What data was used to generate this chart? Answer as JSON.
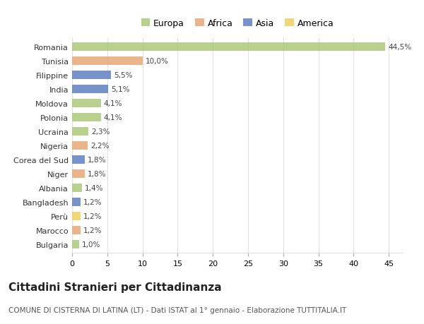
{
  "countries": [
    "Romania",
    "Tunisia",
    "Filippine",
    "India",
    "Moldova",
    "Polonia",
    "Ucraina",
    "Nigeria",
    "Corea del Sud",
    "Niger",
    "Albania",
    "Bangladesh",
    "Perù",
    "Marocco",
    "Bulgaria"
  ],
  "values": [
    44.5,
    10.0,
    5.5,
    5.1,
    4.1,
    4.1,
    2.3,
    2.2,
    1.8,
    1.8,
    1.4,
    1.2,
    1.2,
    1.2,
    1.0
  ],
  "labels": [
    "44,5%",
    "10,0%",
    "5,5%",
    "5,1%",
    "4,1%",
    "4,1%",
    "2,3%",
    "2,2%",
    "1,8%",
    "1,8%",
    "1,4%",
    "1,2%",
    "1,2%",
    "1,2%",
    "1,0%"
  ],
  "continents": [
    "Europa",
    "Africa",
    "Asia",
    "Asia",
    "Europa",
    "Europa",
    "Europa",
    "Africa",
    "Asia",
    "Africa",
    "Europa",
    "Asia",
    "America",
    "Africa",
    "Europa"
  ],
  "continent_colors": {
    "Europa": "#adc87a",
    "Africa": "#e8a878",
    "Asia": "#6080c0",
    "America": "#f0d060"
  },
  "legend_order": [
    "Europa",
    "Africa",
    "Asia",
    "America"
  ],
  "title": "Cittadini Stranieri per Cittadinanza",
  "subtitle": "COMUNE DI CISTERNA DI LATINA (LT) - Dati ISTAT al 1° gennaio - Elaborazione TUTTITALIA.IT",
  "xlim": [
    0,
    47
  ],
  "xticks": [
    0,
    5,
    10,
    15,
    20,
    25,
    30,
    35,
    40,
    45
  ],
  "background_color": "#ffffff",
  "grid_color": "#e0e0e0",
  "bar_height": 0.6,
  "title_fontsize": 11,
  "subtitle_fontsize": 7.5,
  "label_fontsize": 7.5,
  "tick_fontsize": 8,
  "legend_fontsize": 9
}
